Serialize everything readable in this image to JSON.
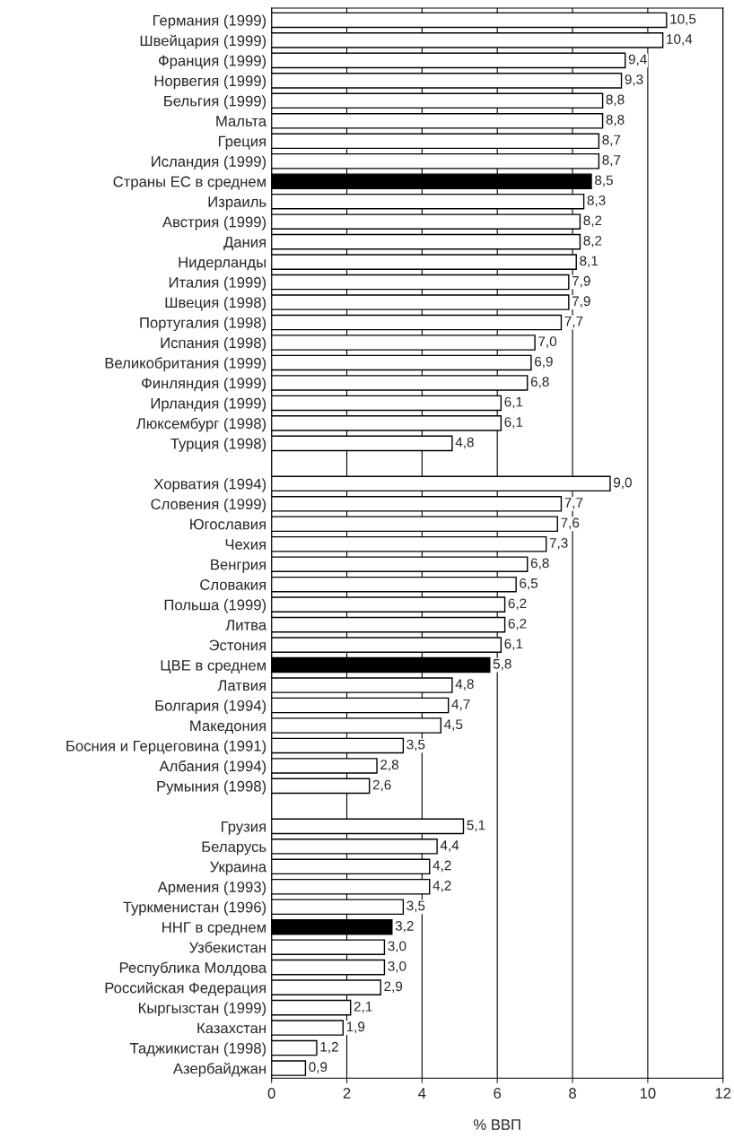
{
  "chart_data": {
    "type": "bar",
    "orientation": "horizontal",
    "xlabel": "% ВВП",
    "categories": [
      "Германия (1999)",
      "Швейцария (1999)",
      "Франция (1999)",
      "Норвегия (1999)",
      "Бельгия (1999)",
      "Мальта",
      "Греция",
      "Исландия (1999)",
      "Страны ЕС в среднем",
      "Израиль",
      "Австрия (1999)",
      "Дания",
      "Нидерланды",
      "Италия (1999)",
      "Швеция (1998)",
      "Португалия (1998)",
      "Испания (1998)",
      "Великобритания (1999)",
      "Финляндия (1999)",
      "Ирландия (1999)",
      "Люксембург (1998)",
      "Турция (1998)",
      null,
      "Хорватия (1994)",
      "Словения (1999)",
      "Югославия",
      "Чехия",
      "Венгрия",
      "Словакия",
      "Польша (1999)",
      "Литва",
      "Эстония",
      "ЦВЕ в среднем",
      "Латвия",
      "Болгария (1994)",
      "Македония",
      "Босния и Герцеговина (1991)",
      "Албания (1994)",
      "Румыния (1998)",
      null,
      "Грузия",
      "Беларусь",
      "Украина",
      "Армения (1993)",
      "Туркменистан (1996)",
      "ННГ в среднем",
      "Узбекистан",
      "Республика Молдова",
      "Российская Федерация",
      "Кыргызстан (1999)",
      "Казахстан",
      "Таджикистан (1998)",
      "Азербайджан"
    ],
    "values": [
      10.5,
      10.4,
      9.4,
      9.3,
      8.8,
      8.8,
      8.7,
      8.7,
      8.5,
      8.3,
      8.2,
      8.2,
      8.1,
      7.9,
      7.9,
      7.7,
      7.0,
      6.9,
      6.8,
      6.1,
      6.1,
      4.8,
      null,
      9.0,
      7.7,
      7.6,
      7.3,
      6.8,
      6.5,
      6.2,
      6.2,
      6.1,
      5.8,
      4.8,
      4.7,
      4.5,
      3.5,
      2.8,
      2.6,
      null,
      5.1,
      4.4,
      4.2,
      4.2,
      3.5,
      3.2,
      3.0,
      3.0,
      2.9,
      2.1,
      1.9,
      1.2,
      0.9
    ],
    "value_labels": [
      "10,5",
      "10,4",
      "9,4",
      "9,3",
      "8,8",
      "8,8",
      "8,7",
      "8,7",
      "8,5",
      "8,3",
      "8,2",
      "8,2",
      "8,1",
      "7,9",
      "7,9",
      "7,7",
      "7,0",
      "6,9",
      "6,8",
      "6,1",
      "6,1",
      "4,8",
      null,
      "9,0",
      "7,7",
      "7,6",
      "7,3",
      "6,8",
      "6,5",
      "6,2",
      "6,2",
      "6,1",
      "5,8",
      "4,8",
      "4,7",
      "4,5",
      "3,5",
      "2,8",
      "2,6",
      null,
      "5,1",
      "4,4",
      "4,2",
      "4,2",
      "3,5",
      "3,2",
      "3,0",
      "3,0",
      "2,9",
      "2,1",
      "1,9",
      "1,2",
      "0,9"
    ],
    "colors": [
      "#ffffff",
      "#ffffff",
      "#ffffff",
      "#ffffff",
      "#ffffff",
      "#ffffff",
      "#ffffff",
      "#ffffff",
      "#000000",
      "#ffffff",
      "#ffffff",
      "#ffffff",
      "#ffffff",
      "#ffffff",
      "#ffffff",
      "#ffffff",
      "#ffffff",
      "#ffffff",
      "#ffffff",
      "#ffffff",
      "#ffffff",
      "#ffffff",
      null,
      "#ffffff",
      "#ffffff",
      "#ffffff",
      "#ffffff",
      "#ffffff",
      "#ffffff",
      "#ffffff",
      "#ffffff",
      "#ffffff",
      "#000000",
      "#ffffff",
      "#ffffff",
      "#ffffff",
      "#ffffff",
      "#ffffff",
      "#ffffff",
      null,
      "#ffffff",
      "#ffffff",
      "#ffffff",
      "#ffffff",
      "#ffffff",
      "#000000",
      "#ffffff",
      "#ffffff",
      "#ffffff",
      "#ffffff",
      "#ffffff",
      "#ffffff",
      "#ffffff"
    ],
    "xlim": [
      0,
      12
    ],
    "xticks": [
      0,
      2,
      4,
      6,
      8,
      10,
      12
    ],
    "grid": "x",
    "legend": false
  }
}
